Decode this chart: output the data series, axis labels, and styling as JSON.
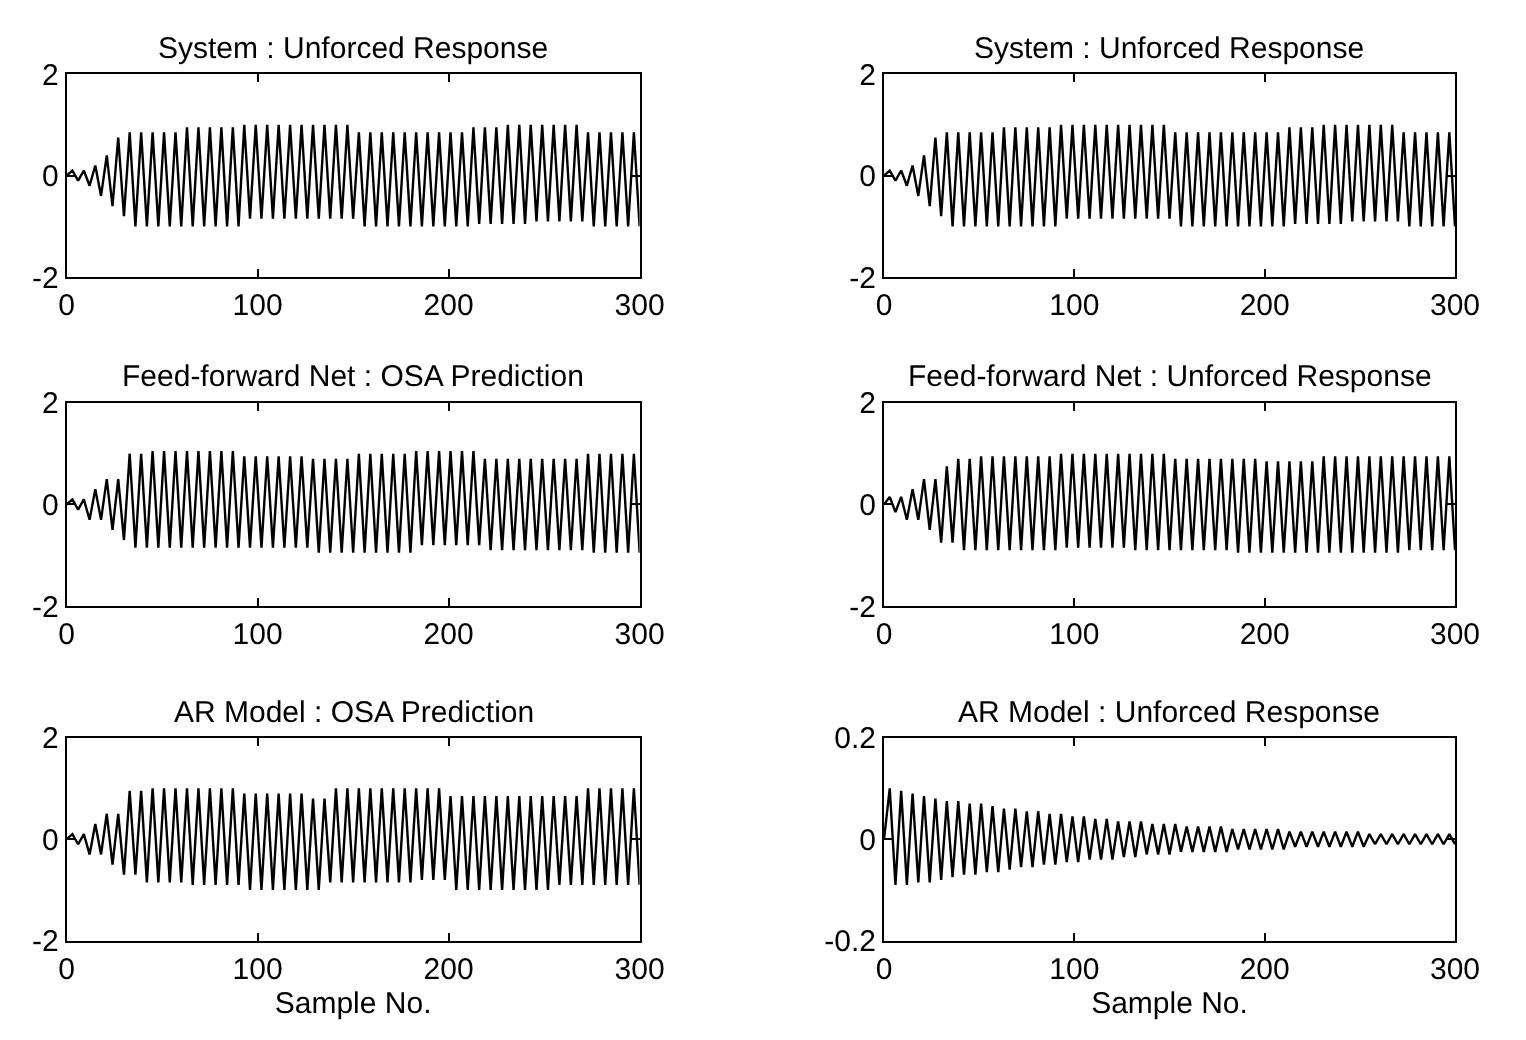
{
  "chart_data": [
    {
      "type": "line",
      "title": "System : Unforced Response",
      "xlim": [
        0,
        300
      ],
      "xticks": [
        0,
        100,
        200,
        300
      ],
      "ylim": [
        -2,
        2
      ],
      "yticks": [
        -2,
        0,
        2
      ],
      "x": [
        0,
        3,
        6,
        9,
        12,
        15,
        18,
        21,
        24,
        27,
        30,
        33,
        36,
        39,
        42,
        45,
        48,
        51,
        54,
        57,
        60,
        63,
        66,
        69,
        72,
        75,
        78,
        81,
        84,
        87,
        90,
        93,
        96,
        99,
        102,
        105,
        108,
        111,
        114,
        117,
        120,
        123,
        126,
        129,
        132,
        135,
        138,
        141,
        144,
        147,
        150,
        153,
        156,
        159,
        162,
        165,
        168,
        171,
        174,
        177,
        180,
        183,
        186,
        189,
        192,
        195,
        198,
        201,
        204,
        207,
        210,
        213,
        216,
        219,
        222,
        225,
        228,
        231,
        234,
        237,
        240,
        243,
        246,
        249,
        252,
        255,
        258,
        261,
        264,
        267,
        270,
        273,
        276,
        279,
        282,
        285,
        288,
        291,
        294,
        297,
        300
      ],
      "series": [
        {
          "color": "#000000",
          "values": [
            0,
            0.1,
            -0.1,
            0.1,
            -0.2,
            0.2,
            -0.4,
            0.4,
            -0.6,
            0.75,
            -0.8,
            0.85,
            -1,
            0.85,
            -1,
            0.85,
            -1,
            0.85,
            -1,
            0.85,
            -1,
            0.95,
            -1,
            0.95,
            -1,
            0.95,
            -1,
            0.95,
            -1,
            0.95,
            -1,
            1,
            -0.85,
            1,
            -0.85,
            1,
            -0.85,
            1,
            -0.85,
            1,
            -0.85,
            1,
            -0.85,
            1,
            -0.85,
            1,
            -0.85,
            1,
            -0.85,
            1,
            -0.85,
            0.85,
            -1,
            0.85,
            -1,
            0.85,
            -1,
            0.85,
            -1,
            0.85,
            -1,
            0.85,
            -1,
            0.85,
            -1,
            0.85,
            -1,
            0.85,
            -1,
            0.85,
            -1,
            0.95,
            -0.95,
            0.95,
            -0.95,
            0.95,
            -0.95,
            1,
            -0.95,
            1,
            -0.95,
            1,
            -0.9,
            1,
            -0.9,
            1,
            -0.9,
            1,
            -0.9,
            1,
            -0.9,
            0.85,
            -1,
            0.85,
            -1,
            0.85,
            -1,
            0.85,
            -1,
            0.85,
            -1
          ]
        }
      ]
    },
    {
      "type": "line",
      "title": "System : Unforced Response",
      "xlim": [
        0,
        300
      ],
      "xticks": [
        0,
        100,
        200,
        300
      ],
      "ylim": [
        -2,
        2
      ],
      "yticks": [
        -2,
        0,
        2
      ],
      "x": [
        0,
        3,
        6,
        9,
        12,
        15,
        18,
        21,
        24,
        27,
        30,
        33,
        36,
        39,
        42,
        45,
        48,
        51,
        54,
        57,
        60,
        63,
        66,
        69,
        72,
        75,
        78,
        81,
        84,
        87,
        90,
        93,
        96,
        99,
        102,
        105,
        108,
        111,
        114,
        117,
        120,
        123,
        126,
        129,
        132,
        135,
        138,
        141,
        144,
        147,
        150,
        153,
        156,
        159,
        162,
        165,
        168,
        171,
        174,
        177,
        180,
        183,
        186,
        189,
        192,
        195,
        198,
        201,
        204,
        207,
        210,
        213,
        216,
        219,
        222,
        225,
        228,
        231,
        234,
        237,
        240,
        243,
        246,
        249,
        252,
        255,
        258,
        261,
        264,
        267,
        270,
        273,
        276,
        279,
        282,
        285,
        288,
        291,
        294,
        297,
        300
      ],
      "series": [
        {
          "color": "#000000",
          "values": [
            0,
            0.1,
            -0.1,
            0.1,
            -0.2,
            0.2,
            -0.4,
            0.4,
            -0.6,
            0.75,
            -0.8,
            0.85,
            -1,
            0.85,
            -1,
            0.85,
            -1,
            0.85,
            -1,
            0.85,
            -1,
            0.95,
            -1,
            0.95,
            -1,
            0.95,
            -1,
            0.95,
            -1,
            0.95,
            -1,
            1,
            -0.85,
            1,
            -0.85,
            1,
            -0.85,
            1,
            -0.85,
            1,
            -0.85,
            1,
            -0.85,
            1,
            -0.85,
            1,
            -0.85,
            1,
            -0.85,
            1,
            -0.85,
            0.85,
            -1,
            0.85,
            -1,
            0.85,
            -1,
            0.85,
            -1,
            0.85,
            -1,
            0.85,
            -1,
            0.85,
            -1,
            0.85,
            -1,
            0.85,
            -1,
            0.85,
            -1,
            0.95,
            -0.95,
            0.95,
            -0.95,
            0.95,
            -0.95,
            1,
            -0.95,
            1,
            -0.95,
            1,
            -0.9,
            1,
            -0.9,
            1,
            -0.9,
            1,
            -0.9,
            1,
            -0.9,
            0.85,
            -1,
            0.85,
            -1,
            0.85,
            -1,
            0.85,
            -1,
            0.85,
            -1
          ]
        }
      ]
    },
    {
      "type": "line",
      "title": "Feed-forward Net : OSA Prediction",
      "xlim": [
        0,
        300
      ],
      "xticks": [
        0,
        100,
        200,
        300
      ],
      "ylim": [
        -2,
        2
      ],
      "yticks": [
        -2,
        0,
        2
      ],
      "x": [
        0,
        3,
        6,
        9,
        12,
        15,
        18,
        21,
        24,
        27,
        30,
        33,
        36,
        39,
        42,
        45,
        48,
        51,
        54,
        57,
        60,
        63,
        66,
        69,
        72,
        75,
        78,
        81,
        84,
        87,
        90,
        93,
        96,
        99,
        102,
        105,
        108,
        111,
        114,
        117,
        120,
        123,
        126,
        129,
        132,
        135,
        138,
        141,
        144,
        147,
        150,
        153,
        156,
        159,
        162,
        165,
        168,
        171,
        174,
        177,
        180,
        183,
        186,
        189,
        192,
        195,
        198,
        201,
        204,
        207,
        210,
        213,
        216,
        219,
        222,
        225,
        228,
        231,
        234,
        237,
        240,
        243,
        246,
        249,
        252,
        255,
        258,
        261,
        264,
        267,
        270,
        273,
        276,
        279,
        282,
        285,
        288,
        291,
        294,
        297,
        300
      ],
      "series": [
        {
          "color": "#000000",
          "values": [
            0,
            0.1,
            -0.1,
            0.1,
            -0.3,
            0.3,
            -0.3,
            0.5,
            -0.5,
            0.5,
            -0.7,
            1,
            -0.85,
            1,
            -0.85,
            1.05,
            -0.85,
            1.05,
            -0.85,
            1.05,
            -0.85,
            1.05,
            -0.85,
            1.05,
            -0.85,
            1.05,
            -0.85,
            1.05,
            -0.85,
            1.05,
            -0.85,
            0.95,
            -0.85,
            0.95,
            -0.85,
            0.95,
            -0.85,
            0.95,
            -0.85,
            0.95,
            -0.85,
            0.95,
            -0.85,
            0.9,
            -0.95,
            0.9,
            -0.95,
            0.9,
            -0.95,
            0.9,
            -0.95,
            1,
            -0.95,
            1,
            -0.95,
            1,
            -0.95,
            1,
            -0.95,
            1,
            -0.95,
            1.05,
            -0.8,
            1.05,
            -0.8,
            1.05,
            -0.8,
            1.05,
            -0.8,
            1.05,
            -0.8,
            1.05,
            -0.8,
            0.9,
            -0.9,
            0.9,
            -0.9,
            0.9,
            -0.9,
            0.9,
            -0.9,
            0.9,
            -0.9,
            0.9,
            -0.9,
            0.9,
            -0.9,
            0.9,
            -0.9,
            0.9,
            -0.9,
            1,
            -0.95,
            1,
            -0.95,
            1,
            -0.95,
            1,
            -0.95,
            1,
            -0.95
          ]
        }
      ]
    },
    {
      "type": "line",
      "title": "Feed-forward Net : Unforced Response",
      "xlim": [
        0,
        300
      ],
      "xticks": [
        0,
        100,
        200,
        300
      ],
      "ylim": [
        -2,
        2
      ],
      "yticks": [
        -2,
        0,
        2
      ],
      "x": [
        0,
        3,
        6,
        9,
        12,
        15,
        18,
        21,
        24,
        27,
        30,
        33,
        36,
        39,
        42,
        45,
        48,
        51,
        54,
        57,
        60,
        63,
        66,
        69,
        72,
        75,
        78,
        81,
        84,
        87,
        90,
        93,
        96,
        99,
        102,
        105,
        108,
        111,
        114,
        117,
        120,
        123,
        126,
        129,
        132,
        135,
        138,
        141,
        144,
        147,
        150,
        153,
        156,
        159,
        162,
        165,
        168,
        171,
        174,
        177,
        180,
        183,
        186,
        189,
        192,
        195,
        198,
        201,
        204,
        207,
        210,
        213,
        216,
        219,
        222,
        225,
        228,
        231,
        234,
        237,
        240,
        243,
        246,
        249,
        252,
        255,
        258,
        261,
        264,
        267,
        270,
        273,
        276,
        279,
        282,
        285,
        288,
        291,
        294,
        297,
        300
      ],
      "series": [
        {
          "color": "#000000",
          "values": [
            0,
            0.15,
            -0.15,
            0.15,
            -0.3,
            0.3,
            -0.3,
            0.5,
            -0.5,
            0.5,
            -0.75,
            0.75,
            -0.75,
            0.9,
            -0.9,
            0.9,
            -0.9,
            0.95,
            -0.9,
            0.95,
            -0.9,
            0.95,
            -0.9,
            0.95,
            -0.9,
            0.95,
            -0.9,
            0.95,
            -0.9,
            0.95,
            -0.9,
            1,
            -0.85,
            1,
            -0.85,
            1,
            -0.85,
            1,
            -0.85,
            1,
            -0.85,
            1,
            -0.85,
            1,
            -0.9,
            1,
            -0.9,
            1,
            -0.9,
            1,
            -0.9,
            0.9,
            -0.9,
            0.9,
            -0.9,
            0.9,
            -0.9,
            0.9,
            -0.9,
            0.9,
            -0.9,
            0.9,
            -0.95,
            0.9,
            -0.95,
            0.9,
            -0.95,
            0.85,
            -0.95,
            0.85,
            -0.95,
            0.85,
            -0.95,
            0.85,
            -0.95,
            0.85,
            -0.95,
            0.95,
            -0.95,
            0.95,
            -0.95,
            0.95,
            -0.95,
            0.95,
            -0.95,
            0.95,
            -0.95,
            0.95,
            -0.95,
            0.95,
            -0.95,
            0.95,
            -0.9,
            0.95,
            -0.9,
            0.95,
            -0.9,
            0.95,
            -0.9,
            0.95,
            -0.9
          ]
        }
      ]
    },
    {
      "type": "line",
      "title": "AR Model : OSA Prediction",
      "xlabel": "Sample No.",
      "xlim": [
        0,
        300
      ],
      "xticks": [
        0,
        100,
        200,
        300
      ],
      "ylim": [
        -2,
        2
      ],
      "yticks": [
        -2,
        0,
        2
      ],
      "x": [
        0,
        3,
        6,
        9,
        12,
        15,
        18,
        21,
        24,
        27,
        30,
        33,
        36,
        39,
        42,
        45,
        48,
        51,
        54,
        57,
        60,
        63,
        66,
        69,
        72,
        75,
        78,
        81,
        84,
        87,
        90,
        93,
        96,
        99,
        102,
        105,
        108,
        111,
        114,
        117,
        120,
        123,
        126,
        129,
        132,
        135,
        138,
        141,
        144,
        147,
        150,
        153,
        156,
        159,
        162,
        165,
        168,
        171,
        174,
        177,
        180,
        183,
        186,
        189,
        192,
        195,
        198,
        201,
        204,
        207,
        210,
        213,
        216,
        219,
        222,
        225,
        228,
        231,
        234,
        237,
        240,
        243,
        246,
        249,
        252,
        255,
        258,
        261,
        264,
        267,
        270,
        273,
        276,
        279,
        282,
        285,
        288,
        291,
        294,
        297,
        300
      ],
      "series": [
        {
          "color": "#000000",
          "values": [
            0,
            0.1,
            -0.1,
            0.1,
            -0.3,
            0.3,
            -0.3,
            0.5,
            -0.5,
            0.5,
            -0.7,
            0.95,
            -0.7,
            0.95,
            -0.85,
            1,
            -0.85,
            1,
            -0.85,
            1,
            -0.85,
            1,
            -0.9,
            1,
            -0.9,
            1,
            -0.9,
            1,
            -0.9,
            1,
            -0.9,
            0.9,
            -1,
            0.9,
            -1,
            0.9,
            -1,
            0.9,
            -1,
            0.9,
            -1,
            0.9,
            -1,
            0.8,
            -1,
            0.8,
            -0.85,
            1,
            -0.85,
            1,
            -0.85,
            1,
            -0.85,
            1,
            -0.85,
            1,
            -0.85,
            1,
            -0.85,
            1,
            -0.85,
            1,
            -0.8,
            1,
            -0.8,
            1,
            -0.8,
            0.85,
            -1,
            0.85,
            -1,
            0.85,
            -1,
            0.85,
            -1,
            0.85,
            -1,
            0.85,
            -1,
            0.85,
            -1,
            0.85,
            -1,
            0.85,
            -1,
            0.85,
            -0.9,
            0.85,
            -0.9,
            0.85,
            -0.9,
            1,
            -0.9,
            1,
            -0.9,
            1,
            -0.9,
            1,
            -0.9,
            1,
            -0.9
          ]
        }
      ]
    },
    {
      "type": "line",
      "title": "AR Model : Unforced Response",
      "xlabel": "Sample No.",
      "xlim": [
        0,
        300
      ],
      "xticks": [
        0,
        100,
        200,
        300
      ],
      "ylim": [
        -0.2,
        0.2
      ],
      "yticks": [
        -0.2,
        0,
        0.2
      ],
      "x": [
        0,
        3,
        6,
        9,
        12,
        15,
        18,
        21,
        24,
        27,
        30,
        33,
        36,
        39,
        42,
        45,
        48,
        51,
        54,
        57,
        60,
        63,
        66,
        69,
        72,
        75,
        78,
        81,
        84,
        87,
        90,
        93,
        96,
        99,
        102,
        105,
        108,
        111,
        114,
        117,
        120,
        123,
        126,
        129,
        132,
        135,
        138,
        141,
        144,
        147,
        150,
        153,
        156,
        159,
        162,
        165,
        168,
        171,
        174,
        177,
        180,
        183,
        186,
        189,
        192,
        195,
        198,
        201,
        204,
        207,
        210,
        213,
        216,
        219,
        222,
        225,
        228,
        231,
        234,
        237,
        240,
        243,
        246,
        249,
        252,
        255,
        258,
        261,
        264,
        267,
        270,
        273,
        276,
        279,
        282,
        285,
        288,
        291,
        294,
        297,
        300
      ],
      "series": [
        {
          "color": "#000000",
          "values": [
            0,
            0.1,
            -0.09,
            0.095,
            -0.09,
            0.09,
            -0.085,
            0.085,
            -0.085,
            0.08,
            -0.08,
            0.075,
            -0.075,
            0.075,
            -0.07,
            0.07,
            -0.07,
            0.07,
            -0.065,
            0.065,
            -0.065,
            0.06,
            -0.06,
            0.06,
            -0.055,
            0.055,
            -0.055,
            0.055,
            -0.05,
            0.05,
            -0.05,
            0.05,
            -0.045,
            0.045,
            -0.045,
            0.045,
            -0.04,
            0.04,
            -0.04,
            0.04,
            -0.04,
            0.035,
            -0.035,
            0.035,
            -0.035,
            0.035,
            -0.03,
            0.03,
            -0.03,
            0.03,
            -0.03,
            0.03,
            -0.025,
            0.025,
            -0.025,
            0.025,
            -0.025,
            0.025,
            -0.025,
            0.025,
            -0.025,
            0.02,
            -0.02,
            0.02,
            -0.02,
            0.02,
            -0.02,
            0.02,
            -0.02,
            0.02,
            -0.02,
            0.015,
            -0.015,
            0.015,
            -0.015,
            0.015,
            -0.015,
            0.015,
            -0.015,
            0.015,
            -0.015,
            0.015,
            -0.015,
            0.015,
            -0.015,
            0.01,
            -0.01,
            0.01,
            -0.01,
            0.01,
            -0.01,
            0.01,
            -0.01,
            0.01,
            -0.01,
            0.01,
            -0.01,
            0.01,
            -0.01,
            0.01,
            -0.01
          ]
        }
      ]
    }
  ]
}
